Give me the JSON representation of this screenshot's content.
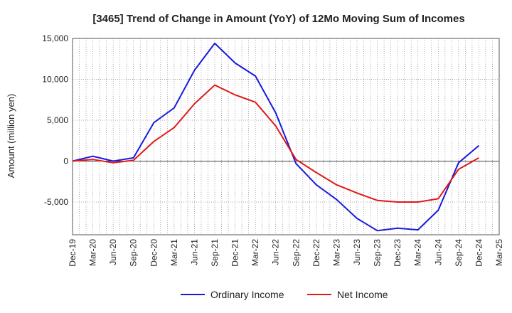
{
  "chart_data": {
    "type": "line",
    "title": "[3465]  Trend of Change in Amount (YoY) of 12Mo Moving Sum of Incomes",
    "xlabel": "",
    "ylabel": "Amount (million yen)",
    "ylim": [
      -9000,
      15000
    ],
    "yticks": [
      -5000,
      0,
      5000,
      10000,
      15000
    ],
    "ytick_labels": [
      "-5,000",
      "0",
      "5,000",
      "10,000",
      "15,000"
    ],
    "categories": [
      "Dec-19",
      "Mar-20",
      "Jun-20",
      "Sep-20",
      "Dec-20",
      "Mar-21",
      "Jun-21",
      "Sep-21",
      "Dec-21",
      "Mar-22",
      "Jun-22",
      "Sep-22",
      "Dec-22",
      "Mar-23",
      "Jun-23",
      "Sep-23",
      "Dec-23",
      "Mar-24",
      "Jun-24",
      "Sep-24",
      "Dec-24",
      "Mar-25"
    ],
    "series": [
      {
        "name": "Ordinary Income",
        "color": "#1a1adc",
        "values": [
          0,
          600,
          0,
          400,
          4700,
          6500,
          11100,
          14400,
          12000,
          10400,
          5900,
          -300,
          -2900,
          -4700,
          -7000,
          -8500,
          -8200,
          -8400,
          -6000,
          -200,
          1900,
          null
        ]
      },
      {
        "name": "Net Income",
        "color": "#e01a1a",
        "values": [
          0,
          200,
          -200,
          100,
          2400,
          4100,
          7000,
          9300,
          8100,
          7200,
          4300,
          200,
          -1400,
          -2900,
          -3900,
          -4800,
          -5000,
          -5000,
          -4600,
          -1000,
          400,
          null
        ]
      }
    ],
    "legend": "bottom-center"
  }
}
